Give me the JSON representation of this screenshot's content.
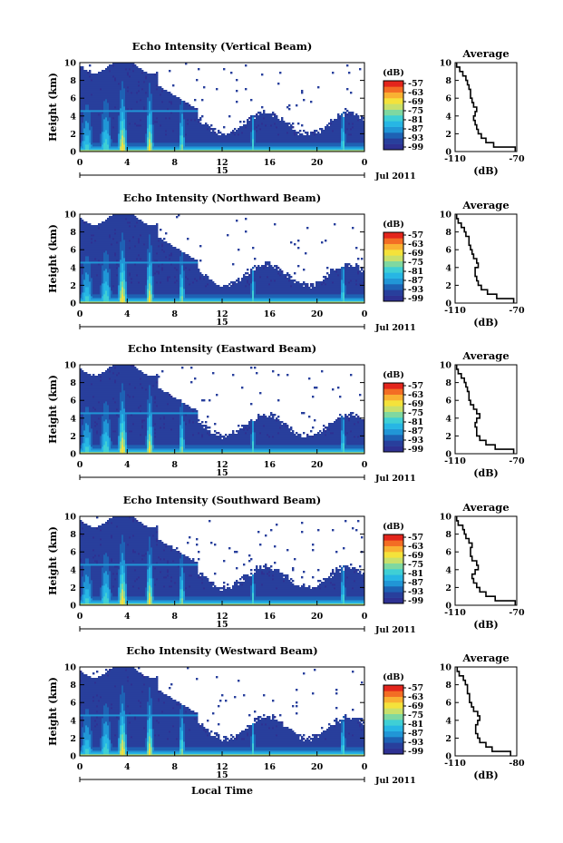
{
  "chart_data": [
    {
      "type": "heatmap",
      "title": "Echo Intensity (Vertical Beam)",
      "ylabel": "Height (km)",
      "ylim": [
        0,
        10
      ],
      "xlim": [
        0,
        24
      ],
      "x_ticks": [
        "0",
        "4",
        "8",
        "12",
        "16",
        "20",
        "0"
      ],
      "y_ticks": [
        "0",
        "2",
        "4",
        "6",
        "8",
        "10"
      ],
      "day_label": "15",
      "date_label": "Jul 2011",
      "colorbar": {
        "label": "(dB)",
        "ticks": [
          "-57",
          "-63",
          "-69",
          "-75",
          "-81",
          "-87",
          "-93",
          "-99"
        ]
      },
      "profile": {
        "title": "Average",
        "xlabel": "(dB)",
        "x_ticks": [
          "-110",
          "-70"
        ],
        "xlim": [
          -110,
          -70
        ],
        "height": [
          0,
          0.5,
          1,
          1.5,
          2,
          2.5,
          3,
          3.5,
          4,
          4.5,
          5,
          5.5,
          6,
          6.5,
          7,
          7.5,
          8,
          8.5,
          9,
          9.5
        ],
        "value": [
          -71,
          -85,
          -90,
          -93,
          -95,
          -96,
          -97,
          -98,
          -97,
          -96,
          -98,
          -99,
          -100,
          -100,
          -101,
          -102,
          -103,
          -105,
          -107,
          -109
        ]
      }
    },
    {
      "type": "heatmap",
      "title": "Echo Intensity (Northward Beam)",
      "ylabel": "Height (km)",
      "ylim": [
        0,
        10
      ],
      "xlim": [
        0,
        24
      ],
      "x_ticks": [
        "0",
        "4",
        "8",
        "12",
        "16",
        "20",
        "0"
      ],
      "y_ticks": [
        "0",
        "2",
        "4",
        "6",
        "8",
        "10"
      ],
      "day_label": "15",
      "date_label": "Jul 2011",
      "colorbar": {
        "label": "(dB)",
        "ticks": [
          "-57",
          "-63",
          "-69",
          "-75",
          "-81",
          "-87",
          "-93",
          "-99"
        ]
      },
      "profile": {
        "title": "Average",
        "xlabel": "(dB)",
        "x_ticks": [
          "-110",
          "-70"
        ],
        "xlim": [
          -110,
          -70
        ],
        "height": [
          0,
          0.5,
          1,
          1.5,
          2,
          2.5,
          3,
          3.5,
          4,
          4.5,
          5,
          5.5,
          6,
          6.5,
          7,
          7.5,
          8,
          8.5,
          9,
          9.5
        ],
        "value": [
          -72,
          -83,
          -89,
          -93,
          -95,
          -96,
          -97,
          -97,
          -95,
          -96,
          -98,
          -99,
          -100,
          -101,
          -101,
          -103,
          -104,
          -106,
          -108,
          -109
        ]
      }
    },
    {
      "type": "heatmap",
      "title": "Echo Intensity (Eastward Beam)",
      "ylabel": "Height (km)",
      "ylim": [
        0,
        10
      ],
      "xlim": [
        0,
        24
      ],
      "x_ticks": [
        "0",
        "4",
        "8",
        "12",
        "16",
        "20",
        "0"
      ],
      "y_ticks": [
        "0",
        "2",
        "4",
        "6",
        "8",
        "10"
      ],
      "day_label": "15",
      "date_label": "Jul 2011",
      "colorbar": {
        "label": "(dB)",
        "ticks": [
          "-57",
          "-63",
          "-69",
          "-75",
          "-81",
          "-87",
          "-93",
          "-99"
        ]
      },
      "profile": {
        "title": "Average",
        "xlabel": "(dB)",
        "x_ticks": [
          "-110",
          "-70"
        ],
        "xlim": [
          -110,
          -70
        ],
        "height": [
          0,
          0.5,
          1,
          1.5,
          2,
          2.5,
          3,
          3.5,
          4,
          4.5,
          5,
          5.5,
          6,
          6.5,
          7,
          7.5,
          8,
          8.5,
          9,
          9.5
        ],
        "value": [
          -72,
          -84,
          -90,
          -94,
          -96,
          -96,
          -97,
          -96,
          -94,
          -96,
          -98,
          -100,
          -101,
          -101,
          -102,
          -103,
          -104,
          -106,
          -108,
          -109
        ]
      }
    },
    {
      "type": "heatmap",
      "title": "Echo Intensity (Southward Beam)",
      "ylabel": "Height (km)",
      "ylim": [
        0,
        10
      ],
      "xlim": [
        0,
        24
      ],
      "x_ticks": [
        "0",
        "4",
        "8",
        "12",
        "16",
        "20",
        "0"
      ],
      "y_ticks": [
        "0",
        "2",
        "4",
        "6",
        "8",
        "10"
      ],
      "day_label": "15",
      "date_label": "Jul 2011",
      "colorbar": {
        "label": "(dB)",
        "ticks": [
          "-57",
          "-63",
          "-69",
          "-75",
          "-81",
          "-87",
          "-93",
          "-99"
        ]
      },
      "profile": {
        "title": "Average",
        "xlabel": "(dB)",
        "x_ticks": [
          "-110",
          "-70"
        ],
        "xlim": [
          -110,
          -70
        ],
        "height": [
          0,
          0.5,
          1,
          1.5,
          2,
          2.5,
          3,
          3.5,
          4,
          4.5,
          5,
          5.5,
          6,
          6.5,
          7,
          7.5,
          8,
          8.5,
          9,
          9.5
        ],
        "value": [
          -71,
          -84,
          -90,
          -94,
          -96,
          -98,
          -99,
          -97,
          -95,
          -96,
          -99,
          -100,
          -100,
          -99,
          -101,
          -103,
          -104,
          -105,
          -108,
          -109
        ]
      }
    },
    {
      "type": "heatmap",
      "title": "Echo Intensity (Westward Beam)",
      "ylabel": "Height (km)",
      "ylim": [
        0,
        10
      ],
      "xlim": [
        0,
        24
      ],
      "x_ticks": [
        "0",
        "4",
        "8",
        "12",
        "16",
        "20",
        "0"
      ],
      "y_ticks": [
        "0",
        "2",
        "4",
        "6",
        "8",
        "10"
      ],
      "day_label": "15",
      "date_label": "Jul 2011",
      "xlabel": "Local Time",
      "colorbar": {
        "label": "(dB)",
        "ticks": [
          "-57",
          "-63",
          "-69",
          "-75",
          "-81",
          "-87",
          "-93",
          "-99"
        ]
      },
      "profile": {
        "title": "Average",
        "xlabel": "(dB)",
        "x_ticks": [
          "-110",
          "-80"
        ],
        "xlim": [
          -110,
          -80
        ],
        "height": [
          0,
          0.5,
          1,
          1.5,
          2,
          2.5,
          3,
          3.5,
          4,
          4.5,
          5,
          5.5,
          6,
          6.5,
          7,
          7.5,
          8,
          8.5,
          9,
          9.5
        ],
        "value": [
          -83,
          -92,
          -95,
          -98,
          -99,
          -100,
          -100,
          -99,
          -98,
          -99,
          -101,
          -102,
          -103,
          -103,
          -104,
          -104,
          -105,
          -106,
          -108,
          -109
        ]
      }
    }
  ],
  "colors": {
    "colormap": [
      "#2e3192",
      "#283f9c",
      "#1e62b4",
      "#2196d6",
      "#27b6e4",
      "#3fcfd5",
      "#7fd8a0",
      "#c8e06b",
      "#f4e23b",
      "#f9b132",
      "#f36d24",
      "#e3251c"
    ],
    "axis": "#000000",
    "profile_line": "#000000"
  }
}
